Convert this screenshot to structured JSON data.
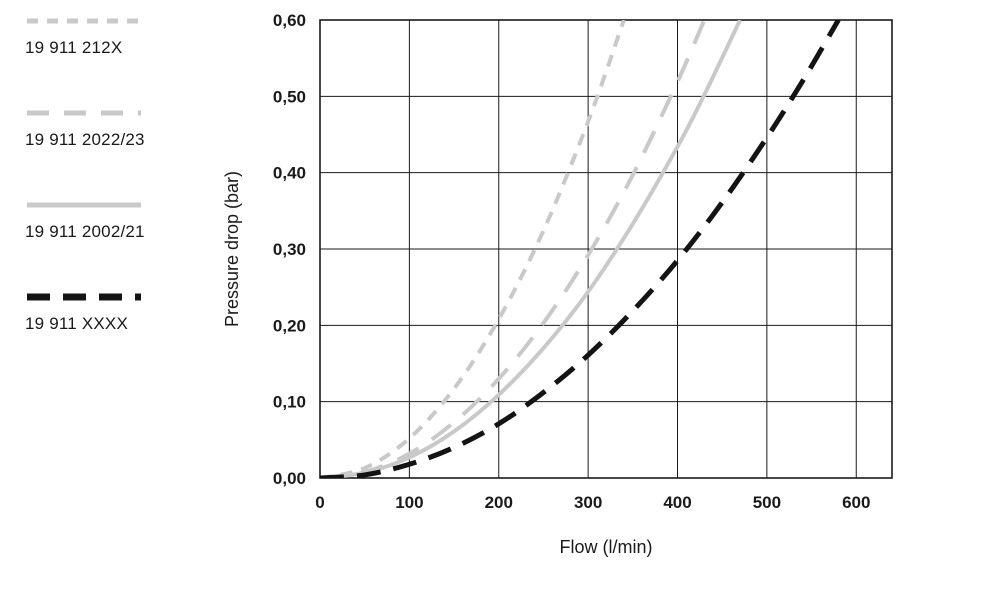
{
  "chart_data": {
    "type": "line",
    "title": "",
    "xlabel": "Flow (l/min)",
    "ylabel": "Pressure drop (bar)",
    "xlim": [
      0,
      640
    ],
    "ylim": [
      0,
      0.6
    ],
    "grid": true,
    "legend_position": "left",
    "xticks": {
      "values": [
        0,
        100,
        200,
        300,
        400,
        500,
        600
      ],
      "labels": [
        "0",
        "100",
        "200",
        "300",
        "400",
        "500",
        "600"
      ]
    },
    "yticks": {
      "values": [
        0,
        0.1,
        0.2,
        0.3,
        0.4,
        0.5,
        0.6
      ],
      "labels": [
        "0,00",
        "0,10",
        "0,20",
        "0,30",
        "0,40",
        "0,50",
        "0,60"
      ]
    },
    "series": [
      {
        "name": "19 911 212X",
        "color": "#c9c9c9",
        "dash": "12 9",
        "width": 4,
        "swatch_dash": "11 9",
        "swatch_width": 5,
        "points": [
          [
            0,
            0
          ],
          [
            50,
            0.013
          ],
          [
            100,
            0.052
          ],
          [
            150,
            0.117
          ],
          [
            200,
            0.208
          ],
          [
            250,
            0.324
          ],
          [
            300,
            0.467
          ],
          [
            340,
            0.6
          ]
        ]
      },
      {
        "name": "19 911 2022/23",
        "color": "#c9c9c9",
        "dash": "24 16",
        "width": 4,
        "swatch_dash": "22 15",
        "swatch_width": 5,
        "points": [
          [
            0,
            0
          ],
          [
            50,
            0.008
          ],
          [
            100,
            0.032
          ],
          [
            150,
            0.073
          ],
          [
            200,
            0.13
          ],
          [
            250,
            0.203
          ],
          [
            300,
            0.292
          ],
          [
            350,
            0.397
          ],
          [
            400,
            0.519
          ],
          [
            430,
            0.6
          ]
        ]
      },
      {
        "name": "19 911 2002/21",
        "color": "#c9c9c9",
        "dash": "",
        "width": 4,
        "swatch_dash": "",
        "swatch_width": 5,
        "points": [
          [
            0,
            0
          ],
          [
            50,
            0.007
          ],
          [
            100,
            0.027
          ],
          [
            150,
            0.061
          ],
          [
            200,
            0.109
          ],
          [
            250,
            0.17
          ],
          [
            300,
            0.244
          ],
          [
            350,
            0.333
          ],
          [
            400,
            0.434
          ],
          [
            430,
            0.502
          ],
          [
            470,
            0.6
          ]
        ]
      },
      {
        "name": "19 911 XXXX",
        "color": "#141414",
        "dash": "24 13",
        "width": 5,
        "swatch_dash": "23 13",
        "swatch_width": 7,
        "points": [
          [
            0,
            0
          ],
          [
            50,
            0.004
          ],
          [
            100,
            0.018
          ],
          [
            150,
            0.04
          ],
          [
            200,
            0.071
          ],
          [
            250,
            0.112
          ],
          [
            300,
            0.161
          ],
          [
            350,
            0.219
          ],
          [
            400,
            0.285
          ],
          [
            450,
            0.361
          ],
          [
            500,
            0.446
          ],
          [
            540,
            0.52
          ],
          [
            580,
            0.6
          ]
        ]
      }
    ]
  },
  "colors": {
    "background": "#ffffff",
    "grid": "#1a1a1a",
    "border": "#1a1a1a",
    "text": "#1a1a1a",
    "gray_series": "#c9c9c9",
    "black_series": "#141414"
  }
}
